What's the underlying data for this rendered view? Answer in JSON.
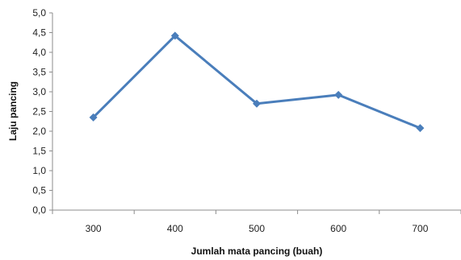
{
  "chart_data": {
    "type": "line",
    "title": "",
    "xlabel": "Jumlah mata pancing (buah)",
    "ylabel": "Laju pancing",
    "categories": [
      "300",
      "400",
      "500",
      "600",
      "700"
    ],
    "series": [
      {
        "values": [
          2.35,
          4.42,
          2.7,
          2.92,
          2.08
        ],
        "color": "#4a7ebb",
        "marker": "diamond"
      }
    ],
    "ylim": [
      0,
      5
    ],
    "yticks": [
      "0,0",
      "0,5",
      "1,0",
      "1,5",
      "2,0",
      "2,5",
      "3,0",
      "3,5",
      "4,0",
      "4,5",
      "5,0"
    ],
    "grid": false,
    "legend": "none"
  }
}
